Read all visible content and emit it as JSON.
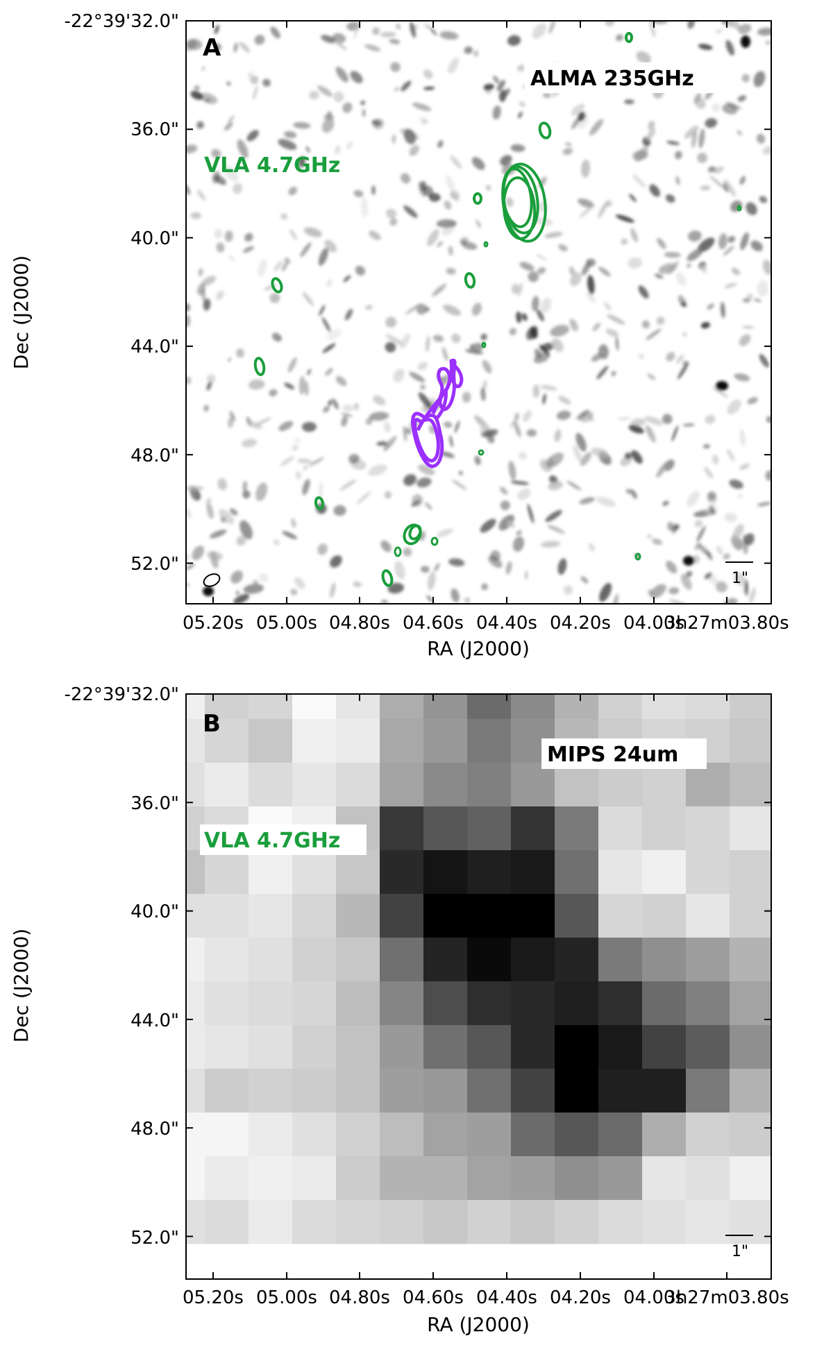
{
  "colors": {
    "vla_contour": "#1a9e3c",
    "alma_contour": "#9b30ff",
    "frame": "#000000"
  },
  "panels": [
    {
      "letter": "A",
      "band_label": "ALMA 235GHz",
      "vla_label": "VLA 4.7GHz",
      "scale_bar_label": "1\"",
      "background": "grayscale noise map",
      "dec_ticks": [
        "-22°39'32.0\"",
        "36.0\"",
        "40.0\"",
        "44.0\"",
        "48.0\"",
        "52.0\""
      ],
      "ra_ticks": [
        "05.20s",
        "05.00s",
        "04.80s",
        "04.60s",
        "04.40s",
        "04.20s",
        "04.00s",
        "3h27m03.80s"
      ],
      "xlabel": "RA (J2000)",
      "ylabel": "Dec (J2000)"
    },
    {
      "letter": "B",
      "band_label": "MIPS 24um",
      "vla_label": "VLA 4.7GHz",
      "scale_bar_label": "1\"",
      "background": "pixelated grayscale 24um image",
      "dec_ticks": [
        "-22°39'32.0\"",
        "36.0\"",
        "40.0\"",
        "44.0\"",
        "48.0\"",
        "52.0\""
      ],
      "ra_ticks": [
        "05.20s",
        "05.00s",
        "04.80s",
        "04.60s",
        "04.40s",
        "04.20s",
        "04.00s",
        "3h27m03.80s"
      ],
      "xlabel": "RA (J2000)",
      "ylabel": "Dec (J2000)"
    }
  ],
  "mips_grid": [
    [
      0.06,
      0.18,
      0.16,
      0.02,
      0.1,
      0.32,
      0.42,
      0.58,
      0.46,
      0.3,
      0.18,
      0.12,
      0.14,
      0.2
    ],
    [
      0.1,
      0.16,
      0.22,
      0.06,
      0.08,
      0.34,
      0.4,
      0.52,
      0.44,
      0.28,
      0.2,
      0.16,
      0.18,
      0.22
    ],
    [
      0.12,
      0.08,
      0.14,
      0.1,
      0.14,
      0.36,
      0.46,
      0.5,
      0.4,
      0.24,
      0.2,
      0.18,
      0.32,
      0.26
    ],
    [
      0.18,
      0.14,
      0.02,
      0.06,
      0.24,
      0.78,
      0.66,
      0.62,
      0.8,
      0.52,
      0.14,
      0.18,
      0.16,
      0.1
    ],
    [
      0.24,
      0.16,
      0.06,
      0.12,
      0.22,
      0.84,
      0.92,
      0.88,
      0.9,
      0.56,
      0.1,
      0.06,
      0.16,
      0.18
    ],
    [
      0.12,
      0.12,
      0.1,
      0.16,
      0.28,
      0.74,
      1.0,
      1.0,
      1.0,
      0.66,
      0.16,
      0.18,
      0.1,
      0.18
    ],
    [
      0.06,
      0.1,
      0.12,
      0.18,
      0.22,
      0.56,
      0.86,
      0.96,
      0.9,
      0.86,
      0.52,
      0.44,
      0.38,
      0.3
    ],
    [
      0.08,
      0.12,
      0.14,
      0.16,
      0.26,
      0.48,
      0.7,
      0.82,
      0.84,
      0.88,
      0.82,
      0.58,
      0.5,
      0.36
    ],
    [
      0.08,
      0.1,
      0.12,
      0.18,
      0.24,
      0.4,
      0.56,
      0.66,
      0.84,
      1.0,
      0.9,
      0.74,
      0.64,
      0.44
    ],
    [
      0.12,
      0.2,
      0.18,
      0.2,
      0.24,
      0.38,
      0.4,
      0.56,
      0.74,
      1.0,
      0.88,
      0.88,
      0.52,
      0.3
    ],
    [
      0.04,
      0.04,
      0.08,
      0.12,
      0.18,
      0.26,
      0.36,
      0.38,
      0.58,
      0.66,
      0.58,
      0.32,
      0.18,
      0.2
    ],
    [
      0.04,
      0.08,
      0.06,
      0.08,
      0.2,
      0.3,
      0.3,
      0.36,
      0.38,
      0.44,
      0.4,
      0.1,
      0.12,
      0.06
    ],
    [
      0.12,
      0.14,
      0.08,
      0.14,
      0.16,
      0.18,
      0.22,
      0.18,
      0.22,
      0.18,
      0.14,
      0.12,
      0.1,
      0.12
    ]
  ]
}
